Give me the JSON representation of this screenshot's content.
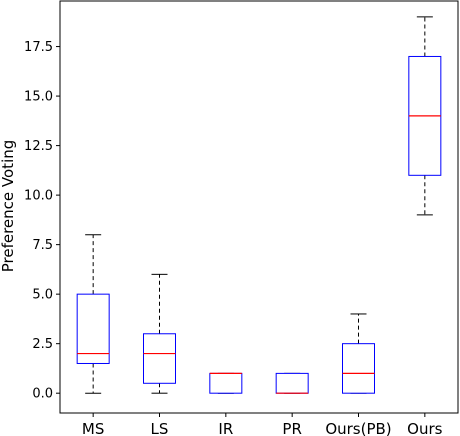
{
  "chart_data": {
    "type": "boxplot",
    "title": "",
    "xlabel": "",
    "ylabel": "Preference Voting",
    "ylim": [
      -1,
      19.8
    ],
    "yticks": [
      0.0,
      2.5,
      5.0,
      7.5,
      10.0,
      12.5,
      15.0,
      17.5
    ],
    "ytick_labels": [
      "0.0",
      "2.5",
      "5.0",
      "7.5",
      "10.0",
      "12.5",
      "15.0",
      "17.5"
    ],
    "grid": false,
    "legend": "none",
    "categories": [
      "MS",
      "LS",
      "IR",
      "PR",
      "Ours(PB)",
      "Ours"
    ],
    "boxes": [
      {
        "label": "MS",
        "whisker_low": 0,
        "q1": 1.5,
        "median": 2,
        "q3": 5,
        "whisker_high": 8
      },
      {
        "label": "LS",
        "whisker_low": 0,
        "q1": 0.5,
        "median": 2,
        "q3": 3,
        "whisker_high": 6
      },
      {
        "label": "IR",
        "whisker_low": 0,
        "q1": 0,
        "median": 1,
        "q3": 1,
        "whisker_high": 1
      },
      {
        "label": "PR",
        "whisker_low": 0,
        "q1": 0,
        "median": 0,
        "q3": 1,
        "whisker_high": 1
      },
      {
        "label": "Ours(PB)",
        "whisker_low": 0,
        "q1": 0,
        "median": 1,
        "q3": 2.5,
        "whisker_high": 4
      },
      {
        "label": "Ours",
        "whisker_low": 9,
        "q1": 11,
        "median": 14,
        "q3": 17,
        "whisker_high": 19
      }
    ],
    "colors": {
      "box": "#0000ff",
      "median": "#ff0000",
      "whisker": "#000000",
      "axis": "#000000"
    }
  }
}
